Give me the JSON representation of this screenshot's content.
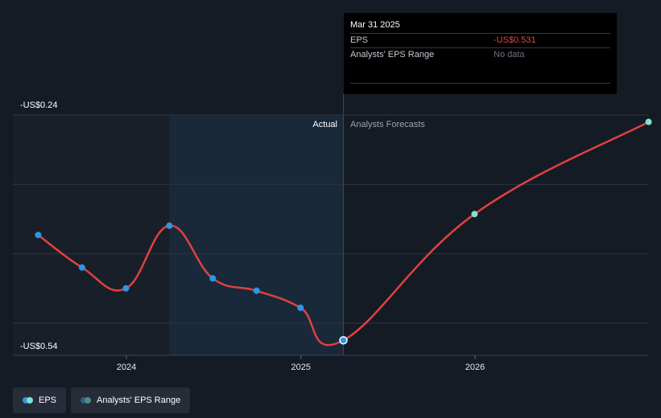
{
  "chart_data": {
    "type": "line",
    "title": "",
    "xlabel": "",
    "ylabel": "",
    "y_axis_labels": {
      "top": "-US$0.24",
      "bottom": "-US$0.54"
    },
    "ylim": [
      -0.54,
      -0.24
    ],
    "xlim": [
      "2023-07-01",
      "2026-12-31"
    ],
    "x_ticks": [
      "2024",
      "2025",
      "2026"
    ],
    "section_labels": {
      "actual": "Actual",
      "forecast": "Analysts Forecasts"
    },
    "actual_range_start": "2024-03-31",
    "divider_date": "2025-03-31",
    "grid": true,
    "legend_position": "bottom-left",
    "series": [
      {
        "name": "EPS",
        "kind": "actual",
        "points": [
          {
            "x": "2023-06-30",
            "y": -0.395
          },
          {
            "x": "2023-09-30",
            "y": -0.437
          },
          {
            "x": "2023-12-31",
            "y": -0.464
          },
          {
            "x": "2024-03-31",
            "y": -0.383
          },
          {
            "x": "2024-06-30",
            "y": -0.451
          },
          {
            "x": "2024-09-30",
            "y": -0.467
          },
          {
            "x": "2024-12-31",
            "y": -0.489
          },
          {
            "x": "2025-03-31",
            "y": -0.531
          }
        ]
      },
      {
        "name": "EPS",
        "kind": "forecast",
        "points": [
          {
            "x": "2025-03-31",
            "y": -0.531
          },
          {
            "x": "2025-12-31",
            "y": -0.368
          },
          {
            "x": "2026-12-31",
            "y": -0.249
          }
        ]
      }
    ]
  },
  "tooltip": {
    "date": "Mar 31 2025",
    "rows": [
      {
        "label": "EPS",
        "value": "-US$0.531"
      },
      {
        "label": "Analysts' EPS Range",
        "value": "No data"
      }
    ]
  },
  "legend": [
    {
      "label": "EPS"
    },
    {
      "label": "Analysts' EPS Range"
    }
  ],
  "colors": {
    "background": "#151b24",
    "actual_shade": "#19293a",
    "pre_shade": "#191f29",
    "line": "#e0413f",
    "actual_dot": "#2e96e6",
    "forecast_dot": "#7ee2d4",
    "grid": "#2d3440",
    "divider": "#3c4a5c",
    "legend_eps_a": "#2e96e6",
    "legend_eps_b": "#7ee2d4",
    "legend_range_a": "#2e5e8a",
    "legend_range_b": "#4a8f86"
  }
}
